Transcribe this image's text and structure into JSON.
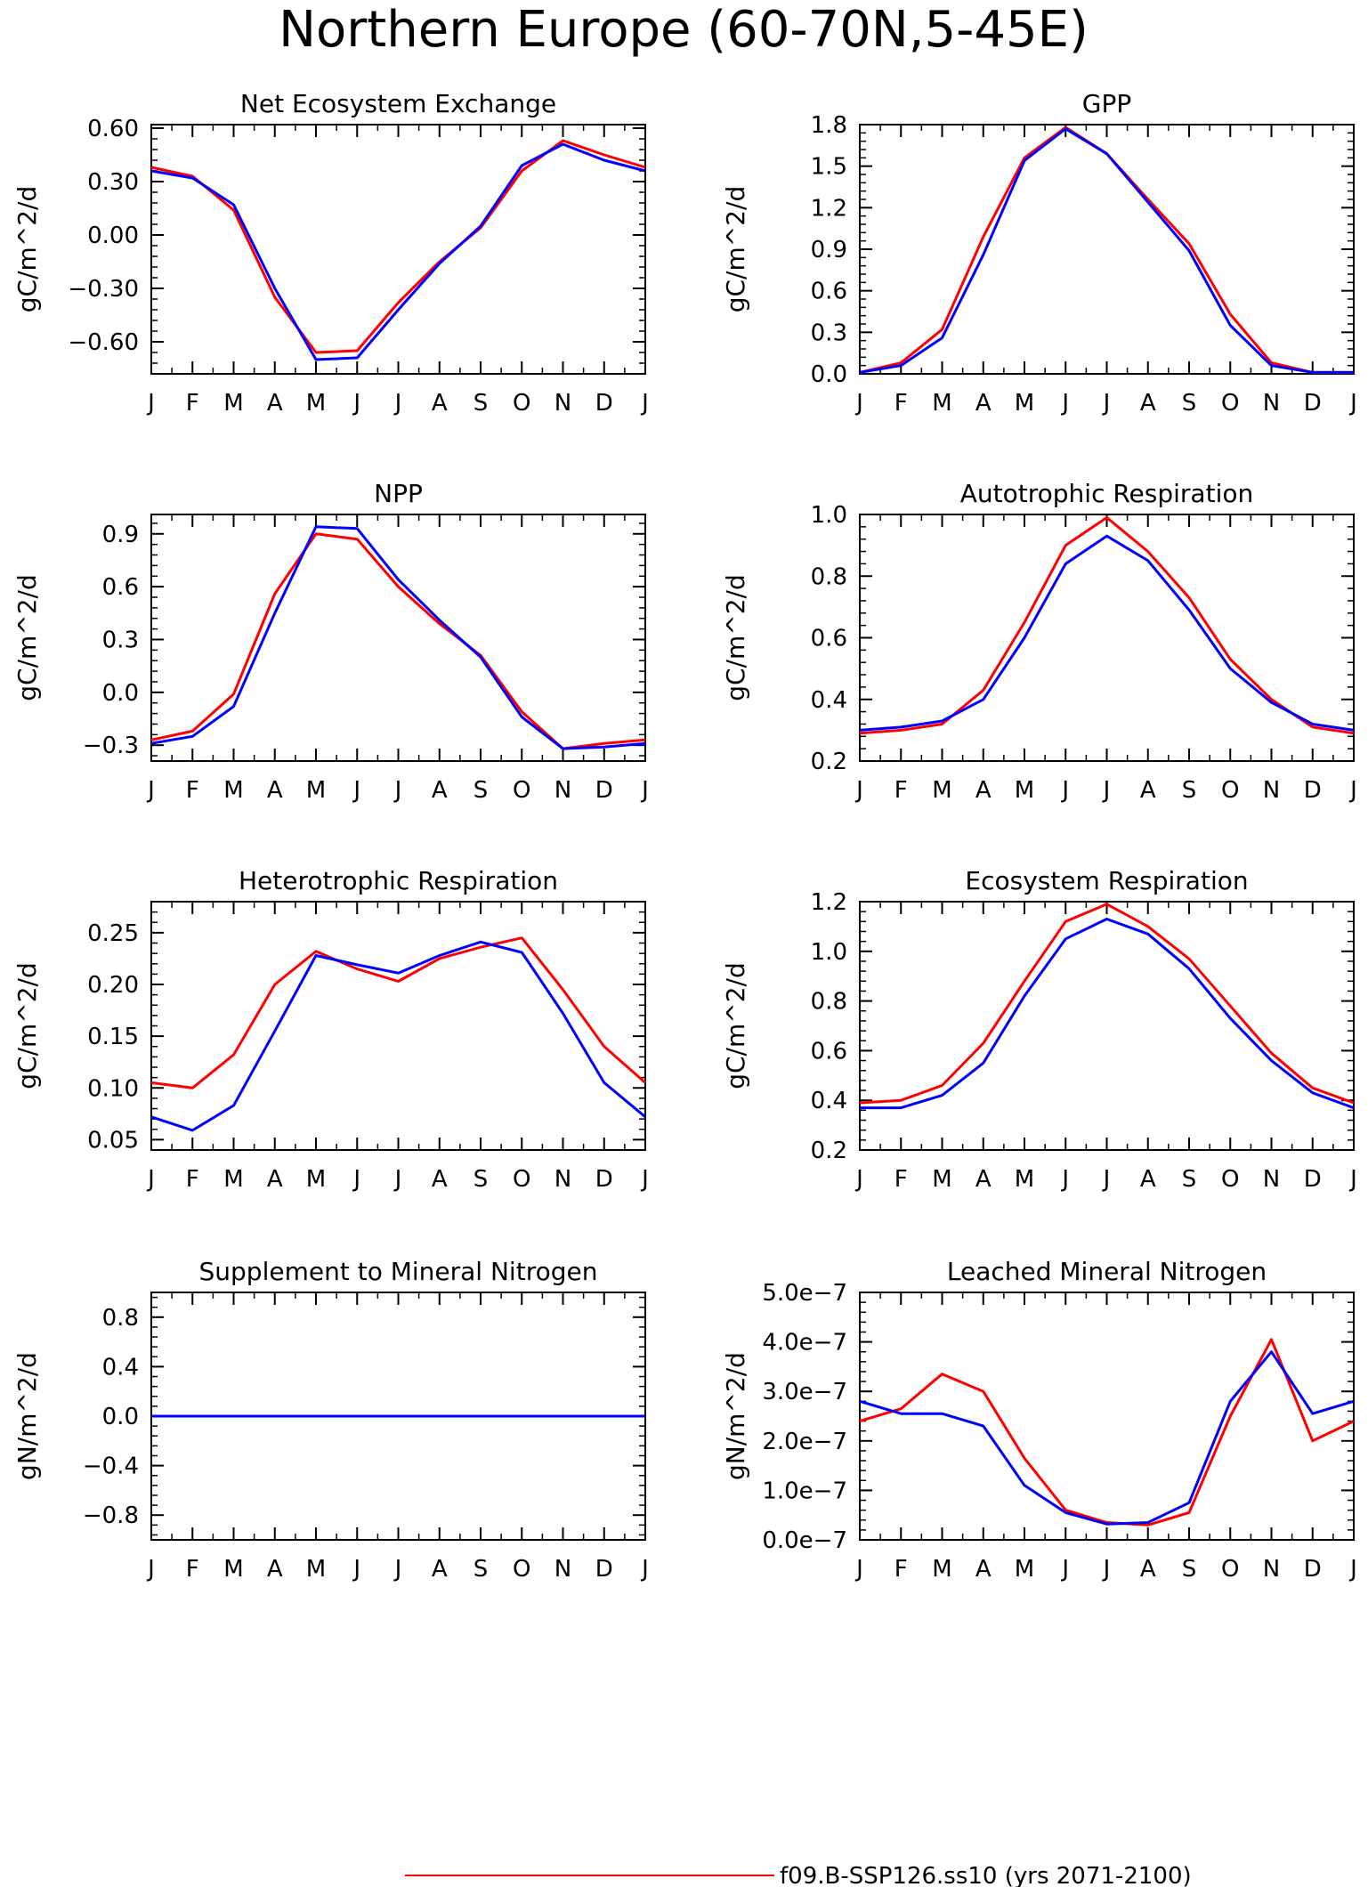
{
  "page": {
    "title": "Northern Europe (60-70N,5-45E)",
    "legend_line_color": "#ff0000",
    "legend_text": "f09.B-SSP126.ss10 (yrs 2071-2100)"
  },
  "colors": {
    "red": "#ff0000",
    "blue": "#0000ff"
  },
  "chart_data": [
    {
      "type": "line",
      "title": "Net Ecosystem Exchange",
      "ylabel": "gC/m^2/d",
      "categories": [
        "J",
        "F",
        "M",
        "A",
        "M",
        "J",
        "J",
        "A",
        "S",
        "O",
        "N",
        "D",
        "J"
      ],
      "ylim": [
        -0.78,
        0.62
      ],
      "yticks": [
        -0.6,
        -0.3,
        0.0,
        0.3,
        0.6
      ],
      "yticklabels": [
        "-0.60",
        "-0.30",
        "0.00",
        "0.30",
        "0.60"
      ],
      "series": [
        {
          "color": "#ff0000",
          "values": [
            0.38,
            0.33,
            0.14,
            -0.35,
            -0.66,
            -0.65,
            -0.38,
            -0.15,
            0.04,
            0.36,
            0.53,
            0.45,
            0.38
          ]
        },
        {
          "color": "#0000ff",
          "values": [
            0.36,
            0.32,
            0.17,
            -0.3,
            -0.7,
            -0.69,
            -0.42,
            -0.16,
            0.05,
            0.39,
            0.51,
            0.42,
            0.36
          ]
        }
      ]
    },
    {
      "type": "line",
      "title": "GPP",
      "ylabel": "gC/m^2/d",
      "categories": [
        "J",
        "F",
        "M",
        "A",
        "M",
        "J",
        "J",
        "A",
        "S",
        "O",
        "N",
        "D",
        "J"
      ],
      "ylim": [
        0.0,
        1.8
      ],
      "yticks": [
        0.0,
        0.3,
        0.6,
        0.9,
        1.2,
        1.5,
        1.8
      ],
      "yticklabels": [
        "0.0",
        "0.3",
        "0.6",
        "0.9",
        "1.2",
        "1.5",
        "1.8"
      ],
      "series": [
        {
          "color": "#ff0000",
          "values": [
            0.01,
            0.08,
            0.32,
            0.99,
            1.56,
            1.78,
            1.59,
            1.26,
            0.94,
            0.43,
            0.08,
            0.01,
            0.01
          ]
        },
        {
          "color": "#0000ff",
          "values": [
            0.01,
            0.06,
            0.26,
            0.86,
            1.54,
            1.77,
            1.59,
            1.24,
            0.89,
            0.35,
            0.06,
            0.01,
            0.01
          ]
        }
      ]
    },
    {
      "type": "line",
      "title": "NPP",
      "ylabel": "gC/m^2/d",
      "categories": [
        "J",
        "F",
        "M",
        "A",
        "M",
        "J",
        "J",
        "A",
        "S",
        "O",
        "N",
        "D",
        "J"
      ],
      "ylim": [
        -0.39,
        1.01
      ],
      "yticks": [
        -0.3,
        0.0,
        0.3,
        0.6,
        0.9
      ],
      "yticklabels": [
        "-0.3",
        "0.0",
        "0.3",
        "0.6",
        "0.9"
      ],
      "series": [
        {
          "color": "#ff0000",
          "values": [
            -0.27,
            -0.22,
            -0.01,
            0.56,
            0.9,
            0.87,
            0.6,
            0.39,
            0.21,
            -0.11,
            -0.32,
            -0.29,
            -0.27
          ]
        },
        {
          "color": "#0000ff",
          "values": [
            -0.29,
            -0.25,
            -0.08,
            0.45,
            0.94,
            0.93,
            0.64,
            0.41,
            0.2,
            -0.14,
            -0.32,
            -0.31,
            -0.29
          ]
        }
      ]
    },
    {
      "type": "line",
      "title": "Autotrophic Respiration",
      "ylabel": "gC/m^2/d",
      "categories": [
        "J",
        "F",
        "M",
        "A",
        "M",
        "J",
        "J",
        "A",
        "S",
        "O",
        "N",
        "D",
        "J"
      ],
      "ylim": [
        0.2,
        1.0
      ],
      "yticks": [
        0.2,
        0.4,
        0.6,
        0.8,
        1.0
      ],
      "yticklabels": [
        "0.2",
        "0.4",
        "0.6",
        "0.8",
        "1.0"
      ],
      "series": [
        {
          "color": "#ff0000",
          "values": [
            0.29,
            0.3,
            0.32,
            0.43,
            0.65,
            0.9,
            0.99,
            0.88,
            0.73,
            0.53,
            0.4,
            0.31,
            0.29
          ]
        },
        {
          "color": "#0000ff",
          "values": [
            0.3,
            0.31,
            0.33,
            0.4,
            0.6,
            0.84,
            0.93,
            0.85,
            0.69,
            0.5,
            0.39,
            0.32,
            0.3
          ]
        }
      ]
    },
    {
      "type": "line",
      "title": "Heterotrophic Respiration",
      "ylabel": "gC/m^2/d",
      "categories": [
        "J",
        "F",
        "M",
        "A",
        "M",
        "J",
        "J",
        "A",
        "S",
        "O",
        "N",
        "D",
        "J"
      ],
      "ylim": [
        0.04,
        0.28
      ],
      "yticks": [
        0.05,
        0.1,
        0.15,
        0.2,
        0.25
      ],
      "yticklabels": [
        "0.05",
        "0.10",
        "0.15",
        "0.20",
        "0.25"
      ],
      "series": [
        {
          "color": "#ff0000",
          "values": [
            0.105,
            0.1,
            0.132,
            0.2,
            0.232,
            0.215,
            0.203,
            0.225,
            0.236,
            0.245,
            0.195,
            0.14,
            0.105
          ]
        },
        {
          "color": "#0000ff",
          "values": [
            0.072,
            0.059,
            0.083,
            0.155,
            0.228,
            0.219,
            0.211,
            0.228,
            0.241,
            0.231,
            0.172,
            0.105,
            0.072
          ]
        }
      ]
    },
    {
      "type": "line",
      "title": "Ecosystem Respiration",
      "ylabel": "gC/m^2/d",
      "categories": [
        "J",
        "F",
        "M",
        "A",
        "M",
        "J",
        "J",
        "A",
        "S",
        "O",
        "N",
        "D",
        "J"
      ],
      "ylim": [
        0.2,
        1.2
      ],
      "yticks": [
        0.2,
        0.4,
        0.6,
        0.8,
        1.0,
        1.2
      ],
      "yticklabels": [
        "0.2",
        "0.4",
        "0.6",
        "0.8",
        "1.0",
        "1.2"
      ],
      "series": [
        {
          "color": "#ff0000",
          "values": [
            0.39,
            0.4,
            0.46,
            0.63,
            0.88,
            1.12,
            1.19,
            1.1,
            0.97,
            0.78,
            0.59,
            0.45,
            0.39
          ]
        },
        {
          "color": "#0000ff",
          "values": [
            0.37,
            0.37,
            0.42,
            0.55,
            0.82,
            1.05,
            1.13,
            1.07,
            0.93,
            0.73,
            0.56,
            0.43,
            0.37
          ]
        }
      ]
    },
    {
      "type": "line",
      "title": "Supplement to Mineral Nitrogen",
      "ylabel": "gN/m^2/d",
      "categories": [
        "J",
        "F",
        "M",
        "A",
        "M",
        "J",
        "J",
        "A",
        "S",
        "O",
        "N",
        "D",
        "J"
      ],
      "ylim": [
        -1.0,
        1.0
      ],
      "yticks": [
        -0.8,
        -0.4,
        0.0,
        0.4,
        0.8
      ],
      "yticklabels": [
        "-0.8",
        "-0.4",
        "0.0",
        "0.4",
        "0.8"
      ],
      "series": [
        {
          "color": "#ff0000",
          "values": [
            0,
            0,
            0,
            0,
            0,
            0,
            0,
            0,
            0,
            0,
            0,
            0,
            0
          ]
        },
        {
          "color": "#0000ff",
          "values": [
            0,
            0,
            0,
            0,
            0,
            0,
            0,
            0,
            0,
            0,
            0,
            0,
            0
          ]
        }
      ]
    },
    {
      "type": "line",
      "title": "Leached Mineral Nitrogen",
      "ylabel": "gN/m^2/d",
      "categories": [
        "J",
        "F",
        "M",
        "A",
        "M",
        "J",
        "J",
        "A",
        "S",
        "O",
        "N",
        "D",
        "J"
      ],
      "ylim": [
        0.0,
        5e-07
      ],
      "yticks": [
        0.0,
        1e-07,
        2e-07,
        3e-07,
        4e-07,
        5e-07
      ],
      "yticklabels": [
        "0.0e-7",
        "1.0e-7",
        "2.0e-7",
        "3.0e-7",
        "4.0e-7",
        "5.0e-7"
      ],
      "series": [
        {
          "color": "#ff0000",
          "values": [
            2.4e-07,
            2.65e-07,
            3.35e-07,
            3e-07,
            1.65e-07,
            6e-08,
            3.5e-08,
            3e-08,
            5.5e-08,
            2.5e-07,
            4.05e-07,
            2e-07,
            2.4e-07
          ]
        },
        {
          "color": "#0000ff",
          "values": [
            2.8e-07,
            2.55e-07,
            2.55e-07,
            2.3e-07,
            1.1e-07,
            5.5e-08,
            3.2e-08,
            3.5e-08,
            7.5e-08,
            2.8e-07,
            3.8e-07,
            2.55e-07,
            2.8e-07
          ]
        }
      ]
    }
  ]
}
